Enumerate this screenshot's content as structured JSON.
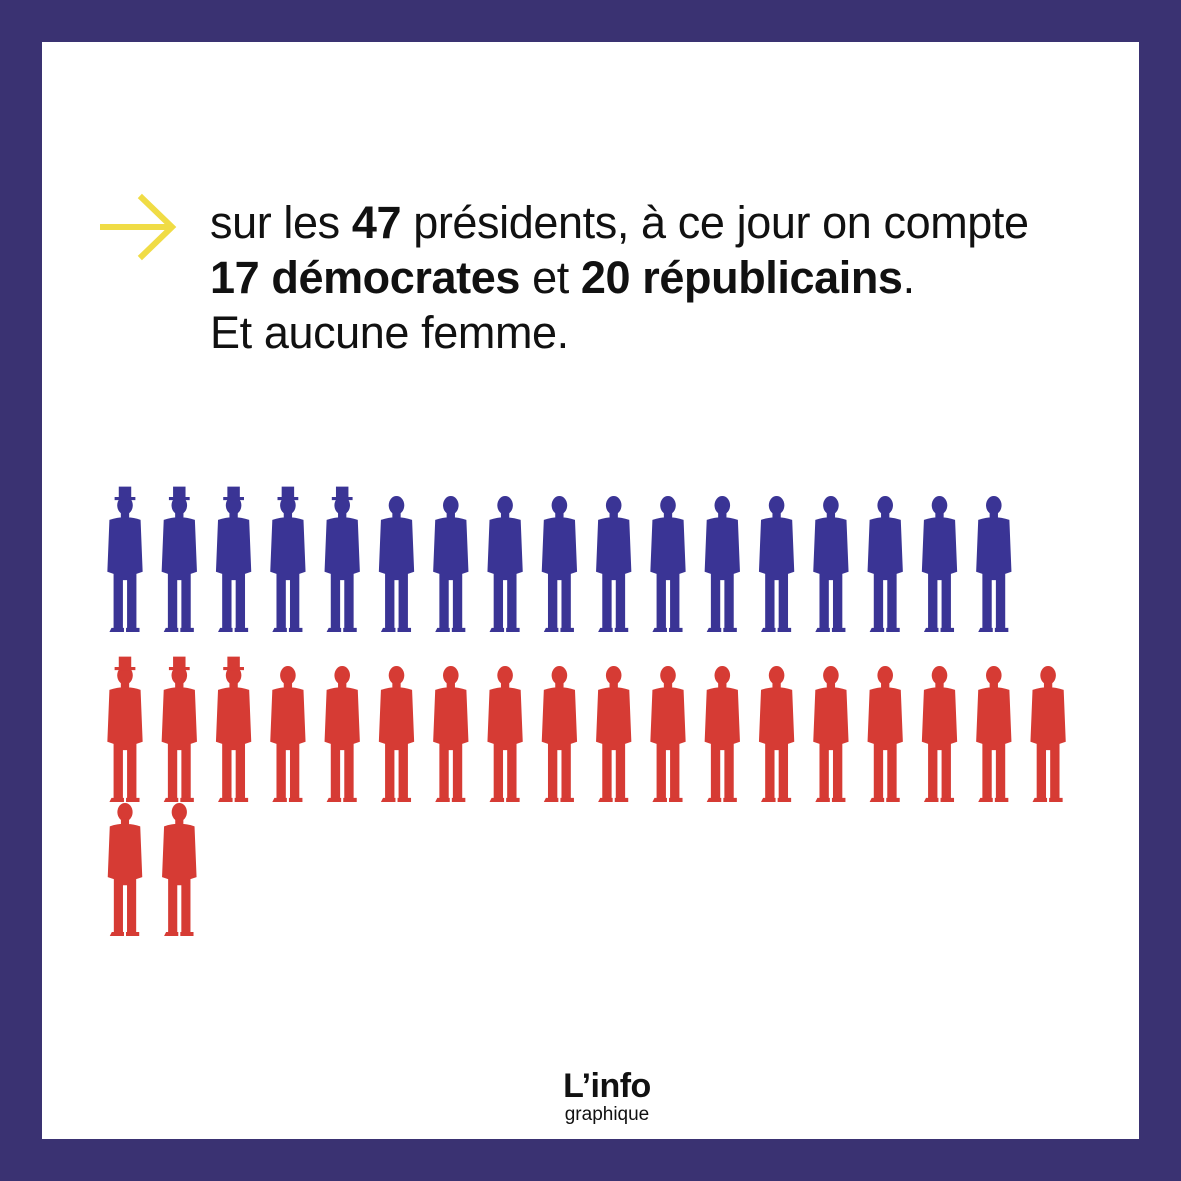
{
  "headline": {
    "line1_pre": "sur les ",
    "line1_num": "47",
    "line1_post": " présidents, à ce jour on compte",
    "line2_dem": "17 démocrates",
    "line2_mid": " et ",
    "line2_rep": "20 républicains",
    "line2_end": ".",
    "line3": "Et aucune femme."
  },
  "chart_data": {
    "type": "pictogram",
    "total": 47,
    "series": [
      {
        "name": "démocrates",
        "value": 17,
        "color": "#3a3495"
      },
      {
        "name": "républicains",
        "value": 20,
        "color": "#d63b34"
      }
    ]
  },
  "brand": {
    "title": "L’info",
    "subtitle": "graphique"
  },
  "colors": {
    "frame": "#3a3272",
    "arrow": "#f0dc45",
    "democrat": "#3a3495",
    "republican": "#d63b34"
  },
  "icons": {
    "arrow": "arrow-right-icon",
    "person": "person-silhouette-icon"
  }
}
